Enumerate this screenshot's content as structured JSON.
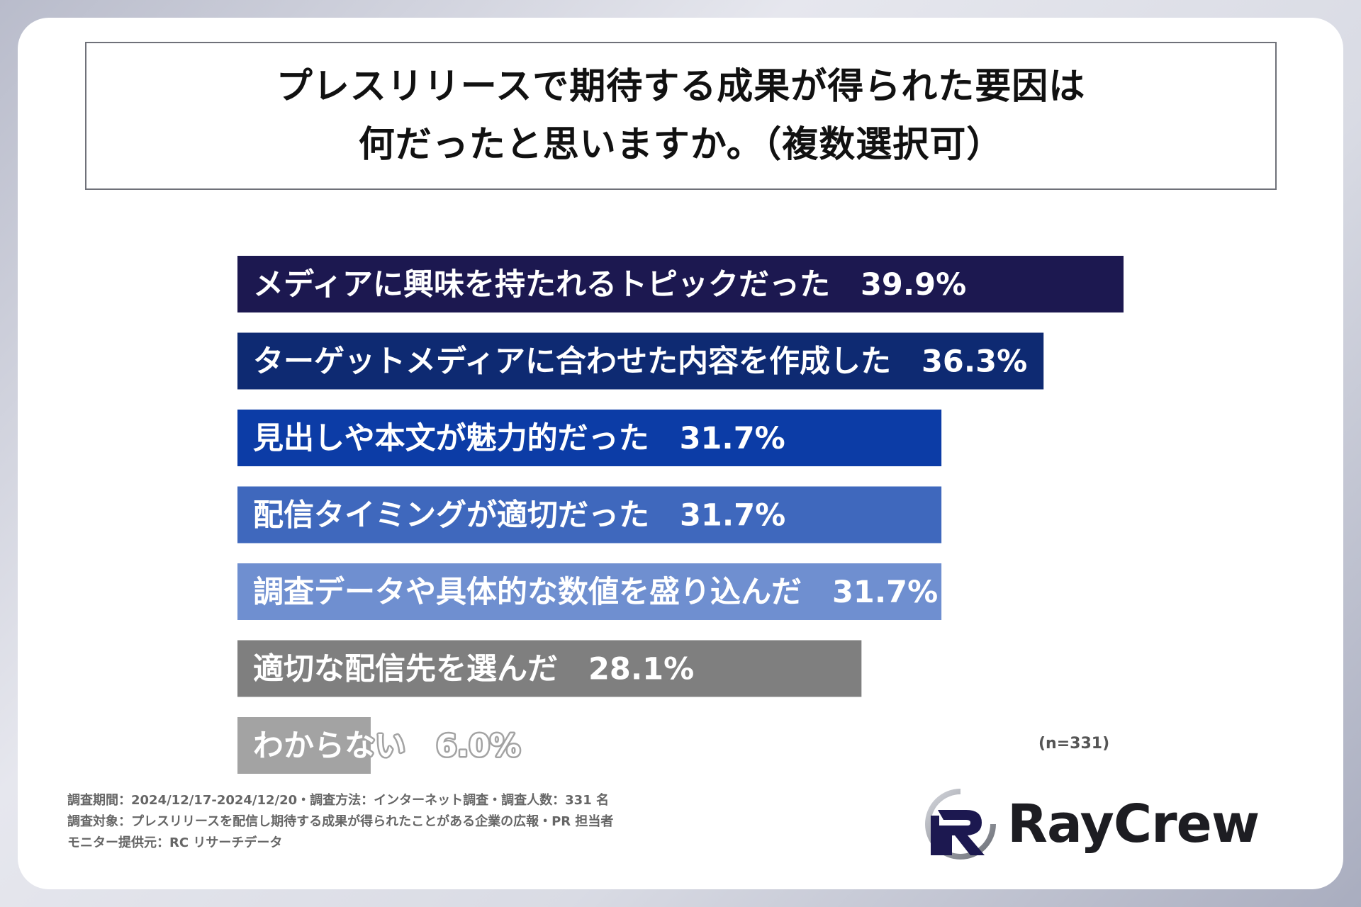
{
  "title": {
    "line1": "プレスリリースで期待する成果が得られた要因は",
    "line2": "何だったと思いますか。（複数選択可）"
  },
  "chart_data": {
    "type": "bar",
    "orientation": "horizontal",
    "categories": [
      "メディアに興味を持たれるトピックだった",
      "ターゲットメディアに合わせた内容を作成した",
      "見出しや本文が魅力的だった",
      "配信タイミングが適切だった",
      "調査データや具体的な数値を盛り込んだ",
      "適切な配信先を選んだ",
      "わからない"
    ],
    "values": [
      39.9,
      36.3,
      31.7,
      31.7,
      31.7,
      28.1,
      6.0
    ],
    "value_labels": [
      "39.9%",
      "36.3%",
      "31.7%",
      "31.7%",
      "31.7%",
      "28.1%",
      "6.0%"
    ],
    "colors": [
      "#1c1850",
      "#0e2a72",
      "#0c3ca6",
      "#3f68bd",
      "#6f8fd0",
      "#7f7f7f",
      "#a3a3a3"
    ],
    "xlim": [
      0,
      39.9
    ],
    "grid": false,
    "note": "(n=331)"
  },
  "notes": [
    "調査期間：2024/12/17-2024/12/20・調査方法：インターネット調査・調査人数：331 名",
    "調査対象：プレスリリースを配信し期待する成果が得られたことがある企業の広報・PR 担当者",
    "モニター提供元：RC リサーチデータ"
  ],
  "logo": {
    "text": "RayCrew",
    "icon": "raycrew-r-logo-icon"
  }
}
